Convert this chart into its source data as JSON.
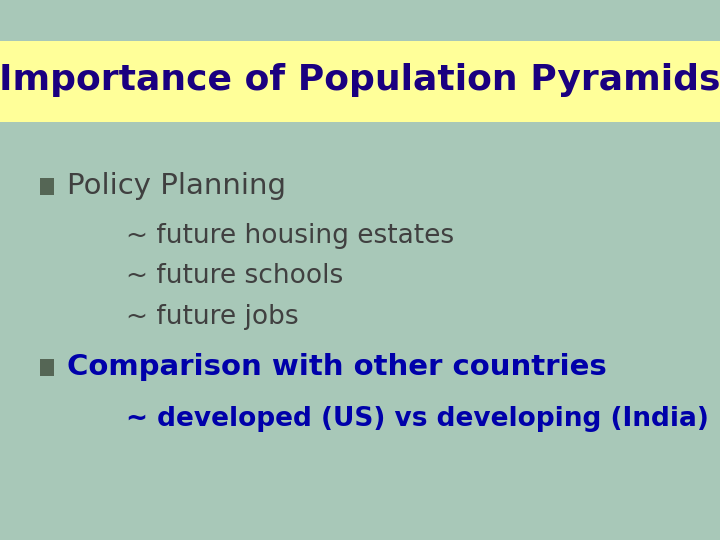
{
  "title": "Importance of Population Pyramids",
  "title_color": "#1A0080",
  "title_fontsize": 26,
  "title_font": "Comic Sans MS",
  "title_bg_color": "#FFFF99",
  "bg_color": "#A8C8B8",
  "bullet_color": "#556655",
  "bullet1_text": "Policy Planning",
  "bullet1_color": "#404040",
  "sub_items1": [
    "~ future housing estates",
    "~ future schools",
    "~ future jobs"
  ],
  "sub_color1": "#404040",
  "bullet2_text": "Comparison with other countries",
  "bullet2_color": "#0000AA",
  "sub_items2": [
    "~ developed (US) vs developing (India)"
  ],
  "sub_color2": "#0000AA",
  "bullet_fontsize": 21,
  "sub_fontsize": 19
}
